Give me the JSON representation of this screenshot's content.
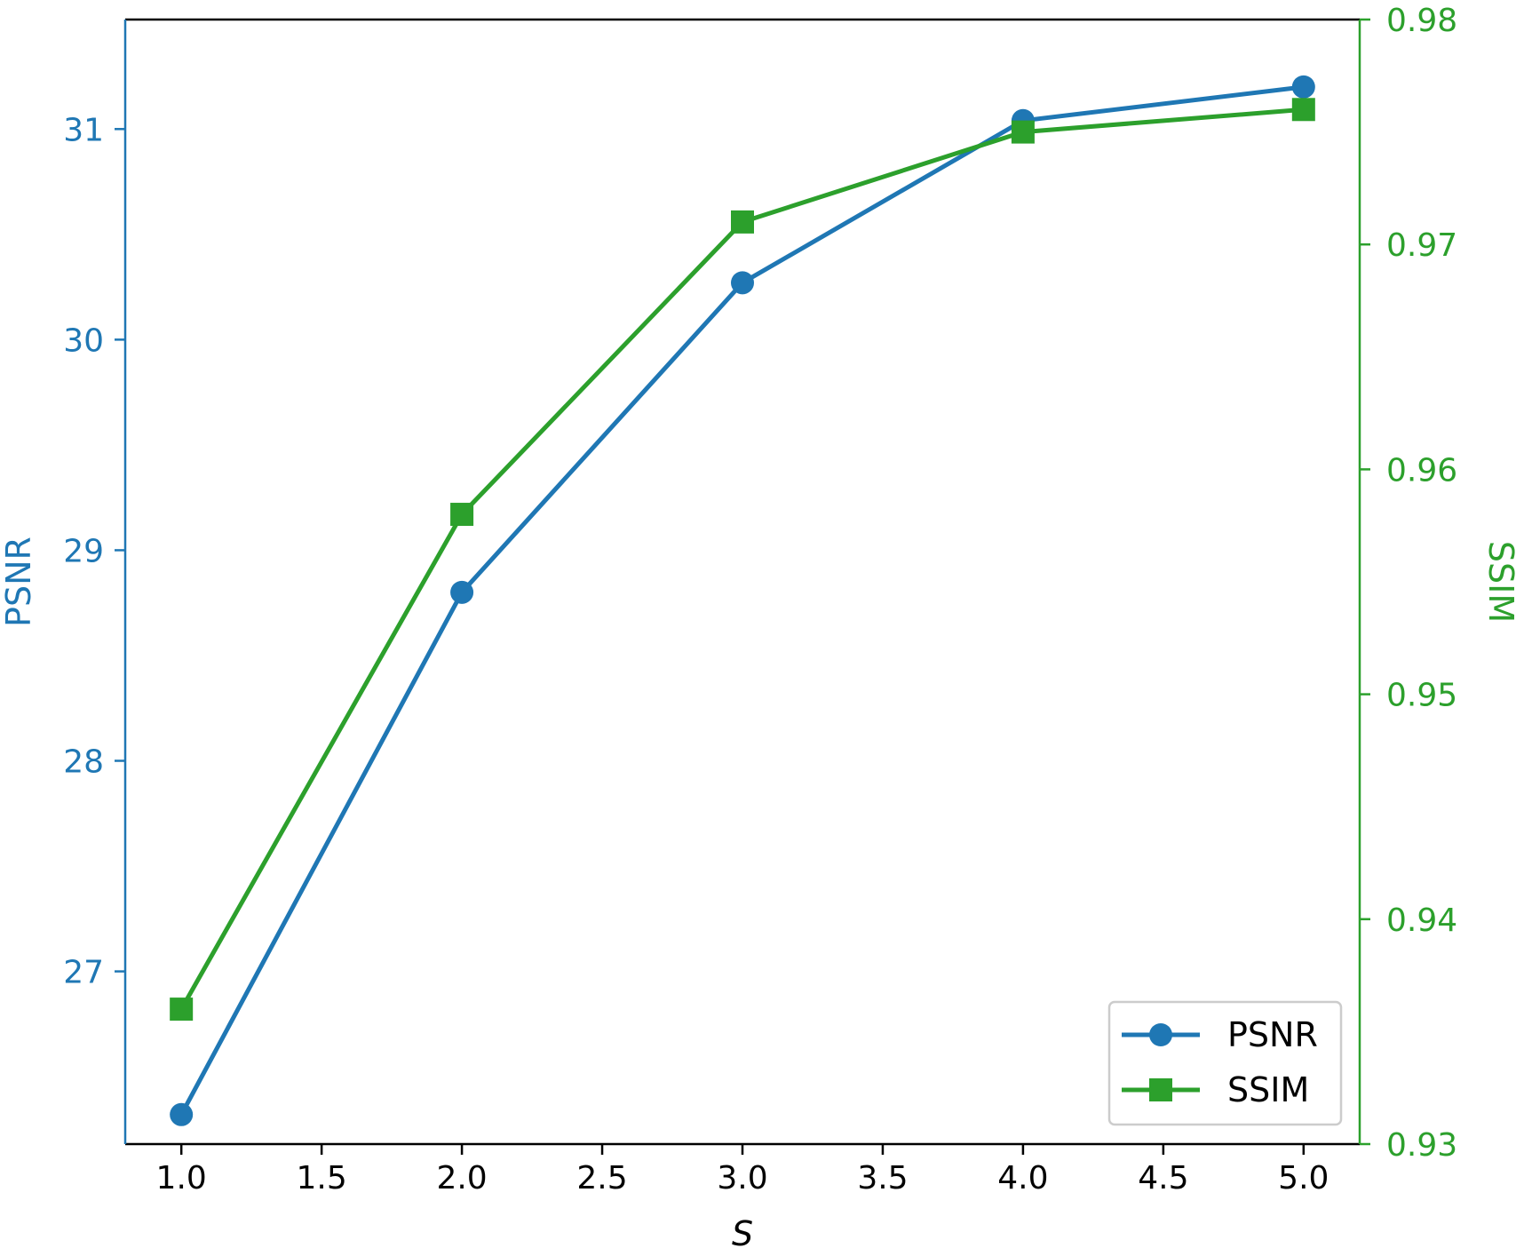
{
  "chart_data": {
    "type": "line",
    "xlabel": "S",
    "ylabel_left": "PSNR",
    "ylabel_right": "SSIM",
    "x": [
      1.0,
      2.0,
      3.0,
      4.0,
      5.0
    ],
    "xlim": [
      0.8,
      5.2
    ],
    "ylim_left": [
      26.18,
      31.52
    ],
    "ylim_right": [
      0.93,
      0.98
    ],
    "x_ticks": [
      "1.0",
      "1.5",
      "2.0",
      "2.5",
      "3.0",
      "3.5",
      "4.0",
      "4.5",
      "5.0"
    ],
    "y_left_ticks": [
      "27",
      "28",
      "29",
      "30",
      "31"
    ],
    "y_right_ticks": [
      "0.93",
      "0.94",
      "0.95",
      "0.96",
      "0.97",
      "0.98"
    ],
    "series": [
      {
        "name": "PSNR",
        "axis": "left",
        "marker": "circle",
        "color": "#1f77b4",
        "values": [
          26.32,
          28.8,
          30.27,
          31.04,
          31.2
        ]
      },
      {
        "name": "SSIM",
        "axis": "right",
        "marker": "square",
        "color": "#2ca02c",
        "values": [
          0.936,
          0.958,
          0.971,
          0.975,
          0.976
        ]
      }
    ],
    "legend_position": "bottom-right",
    "grid": false
  }
}
